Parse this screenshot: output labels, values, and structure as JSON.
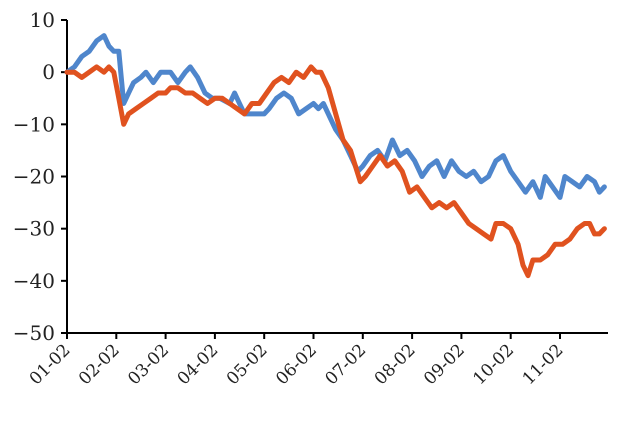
{
  "chart_data": {
    "type": "line",
    "title": "",
    "xlabel": "",
    "ylabel": "",
    "ylim": [
      -50,
      10
    ],
    "y_ticks": [
      10,
      0,
      -10,
      -20,
      -30,
      -40,
      -50
    ],
    "x_range": [
      0,
      10.9
    ],
    "x_ticks": [
      {
        "label": "01-02",
        "x": 0
      },
      {
        "label": "02-02",
        "x": 1
      },
      {
        "label": "03-02",
        "x": 2
      },
      {
        "label": "04-02",
        "x": 3
      },
      {
        "label": "05-02",
        "x": 4
      },
      {
        "label": "06-02",
        "x": 5
      },
      {
        "label": "07-02",
        "x": 6
      },
      {
        "label": "08-02",
        "x": 7
      },
      {
        "label": "09-02",
        "x": 8
      },
      {
        "label": "10-02",
        "x": 9
      },
      {
        "label": "11-02",
        "x": 10
      }
    ],
    "grid": false,
    "legend": "none",
    "series": [
      {
        "color": "#4f86cc",
        "points": [
          [
            0.0,
            0
          ],
          [
            0.15,
            1
          ],
          [
            0.3,
            3
          ],
          [
            0.45,
            4
          ],
          [
            0.6,
            6
          ],
          [
            0.75,
            7
          ],
          [
            0.85,
            5
          ],
          [
            0.95,
            4
          ],
          [
            1.05,
            4
          ],
          [
            1.15,
            -6
          ],
          [
            1.25,
            -4
          ],
          [
            1.35,
            -2
          ],
          [
            1.5,
            -1
          ],
          [
            1.6,
            0
          ],
          [
            1.75,
            -2
          ],
          [
            1.9,
            0
          ],
          [
            2.0,
            0
          ],
          [
            2.1,
            0
          ],
          [
            2.25,
            -2
          ],
          [
            2.4,
            0
          ],
          [
            2.5,
            1
          ],
          [
            2.65,
            -1
          ],
          [
            2.8,
            -4
          ],
          [
            2.95,
            -5
          ],
          [
            3.1,
            -5
          ],
          [
            3.3,
            -6
          ],
          [
            3.4,
            -4
          ],
          [
            3.5,
            -6
          ],
          [
            3.6,
            -8
          ],
          [
            3.8,
            -8
          ],
          [
            4.0,
            -8
          ],
          [
            4.1,
            -7
          ],
          [
            4.25,
            -5
          ],
          [
            4.4,
            -4
          ],
          [
            4.55,
            -5
          ],
          [
            4.7,
            -8
          ],
          [
            4.85,
            -7
          ],
          [
            5.0,
            -6
          ],
          [
            5.1,
            -7
          ],
          [
            5.2,
            -6
          ],
          [
            5.3,
            -8
          ],
          [
            5.45,
            -11
          ],
          [
            5.6,
            -13
          ],
          [
            5.75,
            -16
          ],
          [
            5.9,
            -19
          ],
          [
            6.0,
            -18
          ],
          [
            6.15,
            -16
          ],
          [
            6.3,
            -15
          ],
          [
            6.45,
            -17
          ],
          [
            6.6,
            -13
          ],
          [
            6.75,
            -16
          ],
          [
            6.9,
            -15
          ],
          [
            7.05,
            -17
          ],
          [
            7.2,
            -20
          ],
          [
            7.35,
            -18
          ],
          [
            7.5,
            -17
          ],
          [
            7.65,
            -20
          ],
          [
            7.8,
            -17
          ],
          [
            7.95,
            -19
          ],
          [
            8.1,
            -20
          ],
          [
            8.25,
            -19
          ],
          [
            8.4,
            -21
          ],
          [
            8.55,
            -20
          ],
          [
            8.7,
            -17
          ],
          [
            8.85,
            -16
          ],
          [
            9.0,
            -19
          ],
          [
            9.15,
            -21
          ],
          [
            9.3,
            -23
          ],
          [
            9.45,
            -21
          ],
          [
            9.6,
            -24
          ],
          [
            9.7,
            -20
          ],
          [
            9.85,
            -22
          ],
          [
            10.0,
            -24
          ],
          [
            10.1,
            -20
          ],
          [
            10.25,
            -21
          ],
          [
            10.4,
            -22
          ],
          [
            10.55,
            -20
          ],
          [
            10.7,
            -21
          ],
          [
            10.8,
            -23
          ],
          [
            10.9,
            -22
          ]
        ]
      },
      {
        "color": "#e0521f",
        "points": [
          [
            0.0,
            0
          ],
          [
            0.15,
            0
          ],
          [
            0.3,
            -1
          ],
          [
            0.45,
            0
          ],
          [
            0.6,
            1
          ],
          [
            0.75,
            0
          ],
          [
            0.85,
            1
          ],
          [
            0.95,
            0
          ],
          [
            1.05,
            -5
          ],
          [
            1.15,
            -10
          ],
          [
            1.25,
            -8
          ],
          [
            1.4,
            -7
          ],
          [
            1.55,
            -6
          ],
          [
            1.7,
            -5
          ],
          [
            1.85,
            -4
          ],
          [
            2.0,
            -4
          ],
          [
            2.1,
            -3
          ],
          [
            2.25,
            -3
          ],
          [
            2.4,
            -4
          ],
          [
            2.55,
            -4
          ],
          [
            2.7,
            -5
          ],
          [
            2.85,
            -6
          ],
          [
            3.0,
            -5
          ],
          [
            3.15,
            -5
          ],
          [
            3.3,
            -6
          ],
          [
            3.45,
            -7
          ],
          [
            3.6,
            -8
          ],
          [
            3.75,
            -6
          ],
          [
            3.9,
            -6
          ],
          [
            4.05,
            -4
          ],
          [
            4.2,
            -2
          ],
          [
            4.35,
            -1
          ],
          [
            4.5,
            -2
          ],
          [
            4.65,
            0
          ],
          [
            4.8,
            -1
          ],
          [
            4.95,
            1
          ],
          [
            5.05,
            0
          ],
          [
            5.15,
            0
          ],
          [
            5.3,
            -3
          ],
          [
            5.45,
            -8
          ],
          [
            5.6,
            -13
          ],
          [
            5.75,
            -15
          ],
          [
            5.85,
            -18
          ],
          [
            5.95,
            -21
          ],
          [
            6.05,
            -20
          ],
          [
            6.2,
            -18
          ],
          [
            6.35,
            -16
          ],
          [
            6.5,
            -18
          ],
          [
            6.65,
            -17
          ],
          [
            6.8,
            -19
          ],
          [
            6.95,
            -23
          ],
          [
            7.1,
            -22
          ],
          [
            7.25,
            -24
          ],
          [
            7.4,
            -26
          ],
          [
            7.55,
            -25
          ],
          [
            7.7,
            -26
          ],
          [
            7.85,
            -25
          ],
          [
            8.0,
            -27
          ],
          [
            8.15,
            -29
          ],
          [
            8.3,
            -30
          ],
          [
            8.45,
            -31
          ],
          [
            8.6,
            -32
          ],
          [
            8.7,
            -29
          ],
          [
            8.85,
            -29
          ],
          [
            9.0,
            -30
          ],
          [
            9.15,
            -33
          ],
          [
            9.25,
            -37
          ],
          [
            9.35,
            -39
          ],
          [
            9.45,
            -36
          ],
          [
            9.6,
            -36
          ],
          [
            9.75,
            -35
          ],
          [
            9.9,
            -33
          ],
          [
            10.05,
            -33
          ],
          [
            10.2,
            -32
          ],
          [
            10.35,
            -30
          ],
          [
            10.5,
            -29
          ],
          [
            10.6,
            -29
          ],
          [
            10.7,
            -31
          ],
          [
            10.8,
            -31
          ],
          [
            10.9,
            -30
          ]
        ]
      }
    ]
  }
}
